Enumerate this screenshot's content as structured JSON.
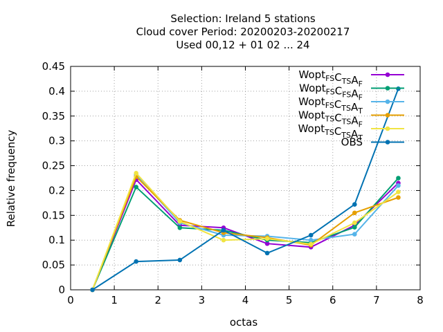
{
  "chart_data": {
    "type": "line",
    "title_lines": [
      "Selection: Ireland      5 stations",
      "Cloud cover  Period: 20200203-20200217",
      "Used  00,12 + 01 02 ... 24"
    ],
    "xlabel": "octas",
    "ylabel": "Relative frequency",
    "xlim": [
      0,
      8
    ],
    "ylim": [
      0,
      0.45
    ],
    "xticks": [
      "0",
      "1",
      "2",
      "3",
      "4",
      "5",
      "6",
      "7",
      "8"
    ],
    "yticks": [
      "0",
      "0.05",
      "0.1",
      "0.15",
      "0.2",
      "0.25",
      "0.3",
      "0.35",
      "0.4",
      "0.45"
    ],
    "grid": true,
    "legend_position": "top-right",
    "x": [
      0.5,
      1.5,
      2.5,
      3.5,
      4.5,
      5.5,
      6.5,
      7.5
    ],
    "series": [
      {
        "name": "Wopt FS C TS A F",
        "name_parts": [
          [
            "Wopt",
            ""
          ],
          [
            "FS",
            "sub"
          ],
          [
            "C",
            ""
          ],
          [
            "TS",
            "sub"
          ],
          [
            "A",
            ""
          ],
          [
            "F",
            "sub"
          ]
        ],
        "color": "#9400d3",
        "values": [
          0.0,
          0.222,
          0.13,
          0.125,
          0.093,
          0.086,
          0.13,
          0.215
        ]
      },
      {
        "name": "Wopt FS C FS A F",
        "name_parts": [
          [
            "Wopt",
            ""
          ],
          [
            "FS",
            "sub"
          ],
          [
            "C",
            ""
          ],
          [
            "FS",
            "sub"
          ],
          [
            "A",
            ""
          ],
          [
            "F",
            "sub"
          ]
        ],
        "color": "#009e73",
        "values": [
          0.0,
          0.207,
          0.125,
          0.12,
          0.1,
          0.095,
          0.126,
          0.225
        ]
      },
      {
        "name": "Wopt FS C TS A T",
        "name_parts": [
          [
            "Wopt",
            ""
          ],
          [
            "FS",
            "sub"
          ],
          [
            "C",
            ""
          ],
          [
            "TS",
            "sub"
          ],
          [
            "A",
            ""
          ],
          [
            "T",
            "sub"
          ]
        ],
        "color": "#56b4e9",
        "values": [
          0.0,
          0.232,
          0.135,
          0.11,
          0.108,
          0.1,
          0.112,
          0.21
        ]
      },
      {
        "name": "Wopt TS C TS A F",
        "name_parts": [
          [
            "Wopt",
            ""
          ],
          [
            "TS",
            "sub"
          ],
          [
            "C",
            ""
          ],
          [
            "TS",
            "sub"
          ],
          [
            "A",
            ""
          ],
          [
            "F",
            "sub"
          ]
        ],
        "color": "#e69f00",
        "values": [
          0.0,
          0.228,
          0.14,
          0.115,
          0.105,
          0.09,
          0.155,
          0.186
        ]
      },
      {
        "name": "Wopt TS C TS A T",
        "name_parts": [
          [
            "Wopt",
            ""
          ],
          [
            "TS",
            "sub"
          ],
          [
            "C",
            ""
          ],
          [
            "TS",
            "sub"
          ],
          [
            "A",
            ""
          ],
          [
            "T",
            "sub"
          ]
        ],
        "color": "#f0e442",
        "values": [
          0.0,
          0.235,
          0.138,
          0.1,
          0.103,
          0.092,
          0.135,
          0.197
        ]
      },
      {
        "name": "OBS",
        "name_parts": [
          [
            "OBS",
            ""
          ]
        ],
        "color": "#0072b2",
        "values": [
          0.0,
          0.057,
          0.06,
          0.12,
          0.074,
          0.11,
          0.172,
          0.405
        ]
      }
    ]
  }
}
